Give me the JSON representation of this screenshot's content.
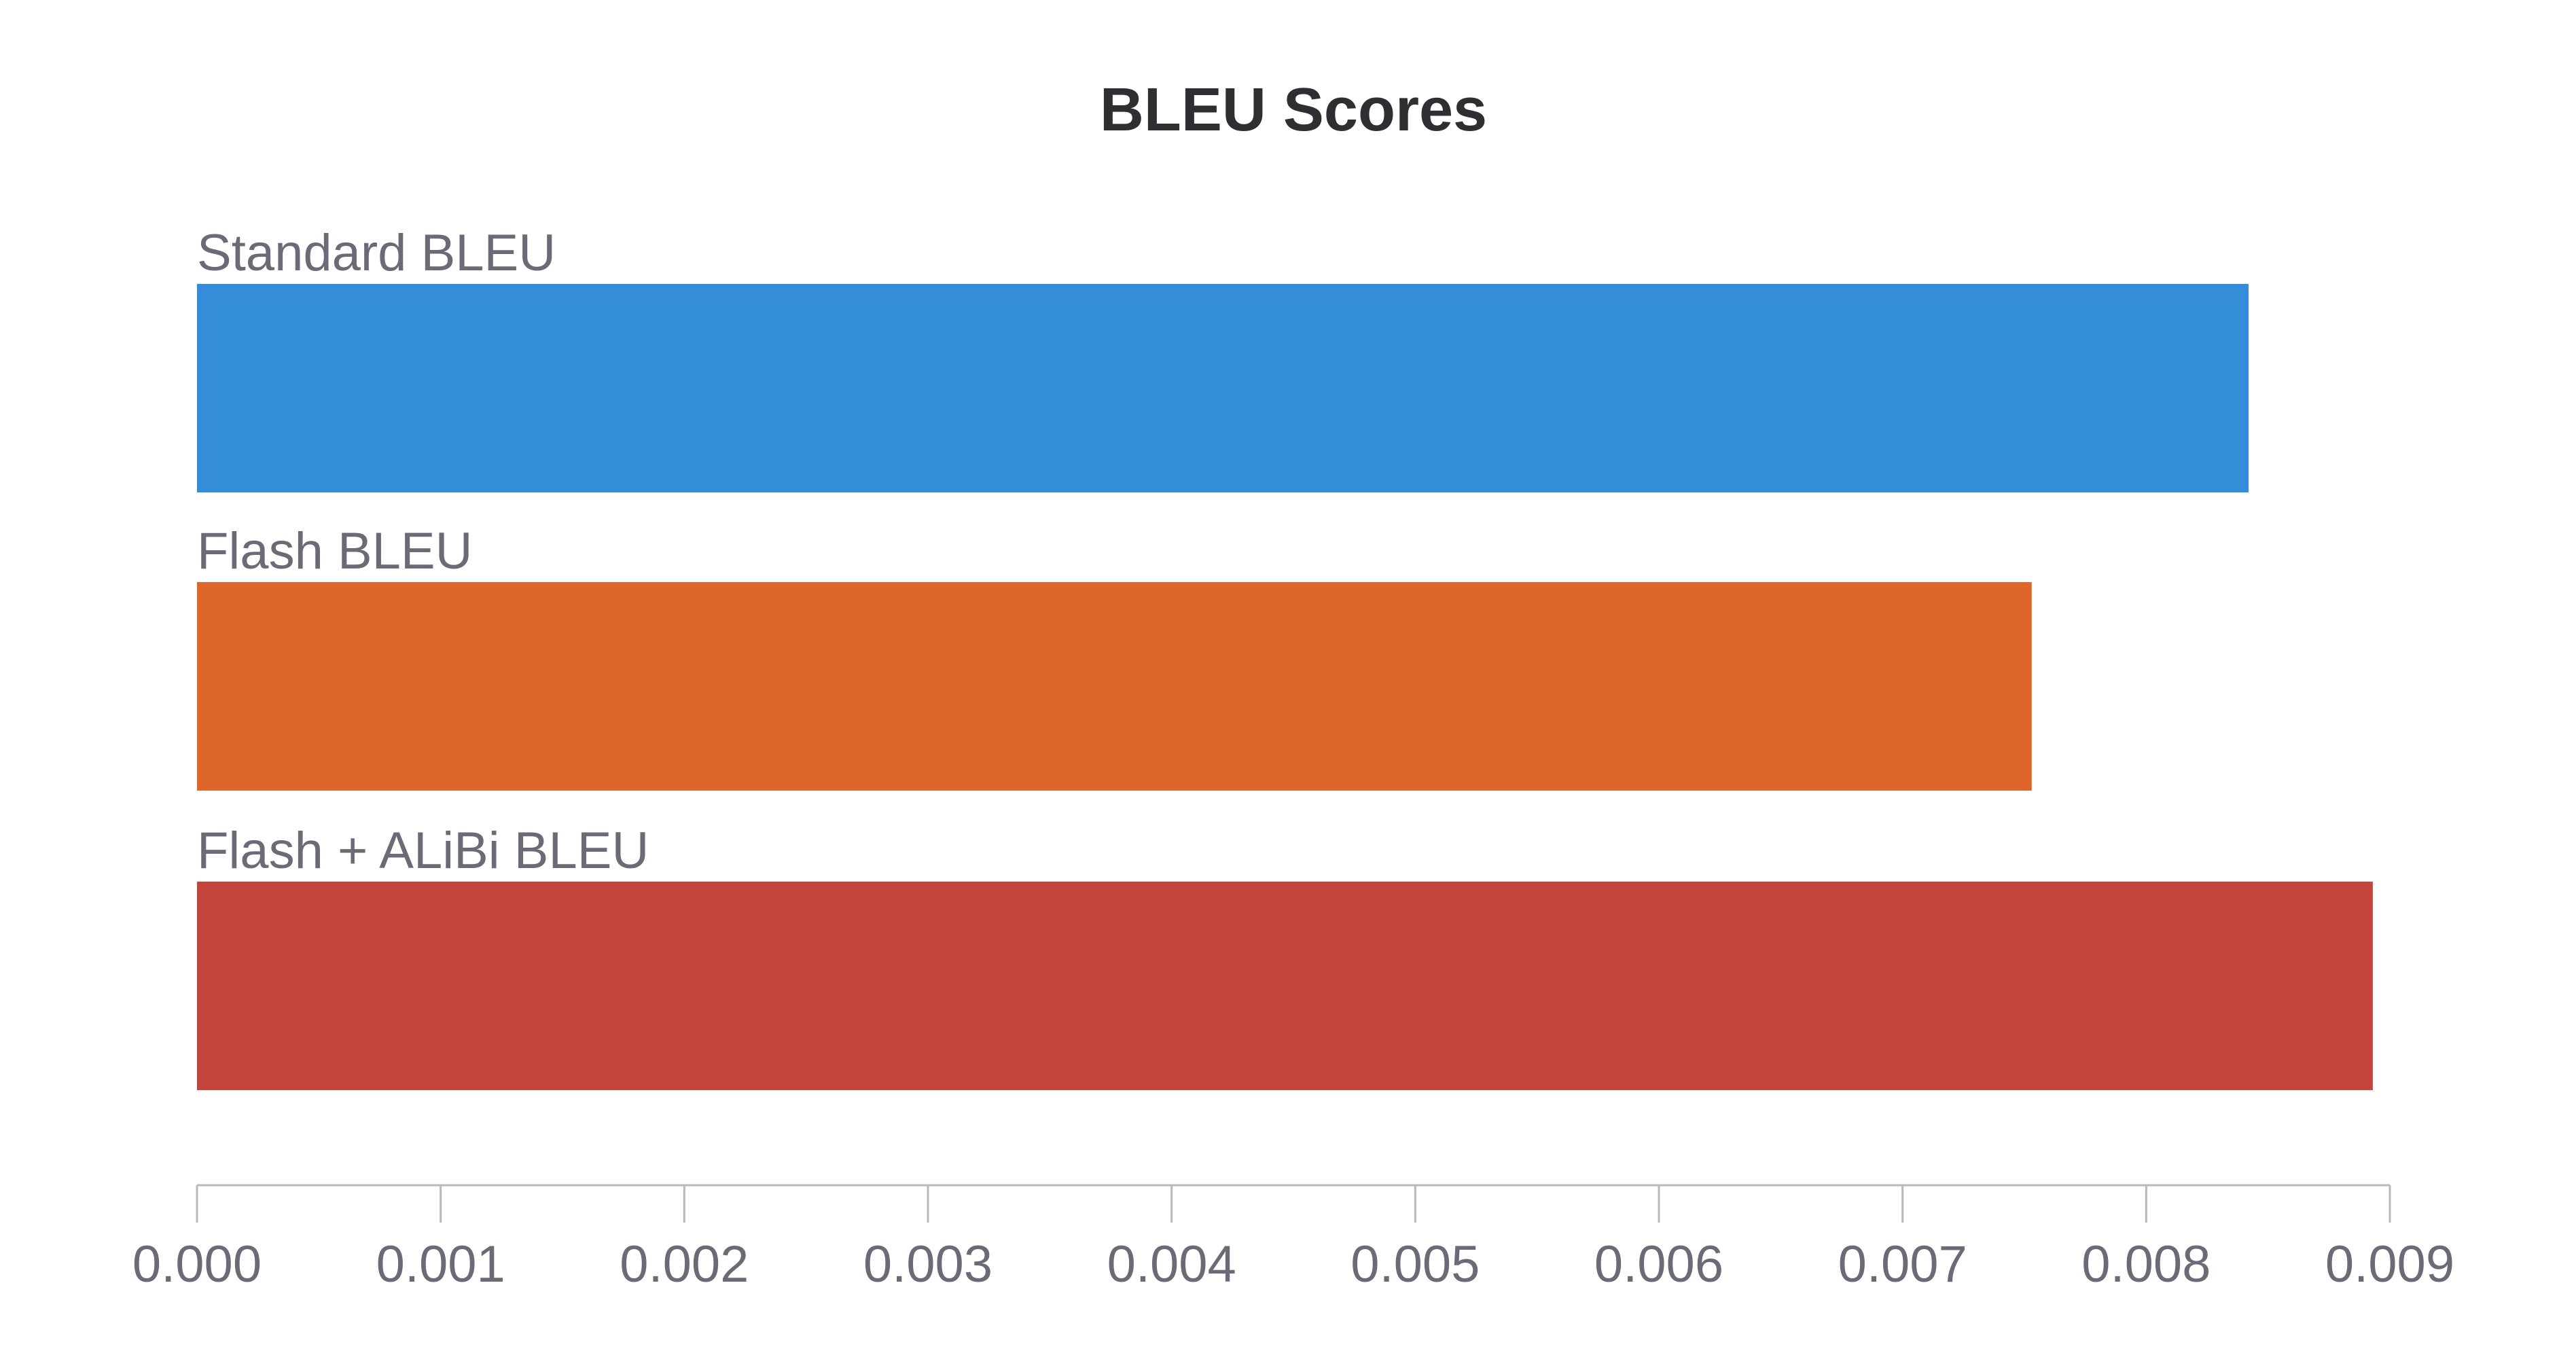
{
  "chart_data": {
    "type": "bar",
    "orientation": "horizontal",
    "title": "BLEU Scores",
    "xlabel": "",
    "ylabel": "",
    "categories": [
      "Standard BLEU",
      "Flash BLEU",
      "Flash + ALiBi BLEU"
    ],
    "values": [
      0.00842,
      0.00753,
      0.00893
    ],
    "colors": [
      "#348dd8",
      "#df662b",
      "#c2443c"
    ],
    "xlim": [
      0,
      0.009
    ],
    "xticks": [
      0,
      0.001,
      0.002,
      0.003,
      0.004,
      0.005,
      0.006,
      0.007,
      0.008,
      0.009
    ],
    "xtick_labels": [
      "0.000",
      "0.001",
      "0.002",
      "0.003",
      "0.004",
      "0.005",
      "0.006",
      "0.007",
      "0.008",
      "0.009"
    ],
    "grid": false,
    "legend": "none"
  }
}
